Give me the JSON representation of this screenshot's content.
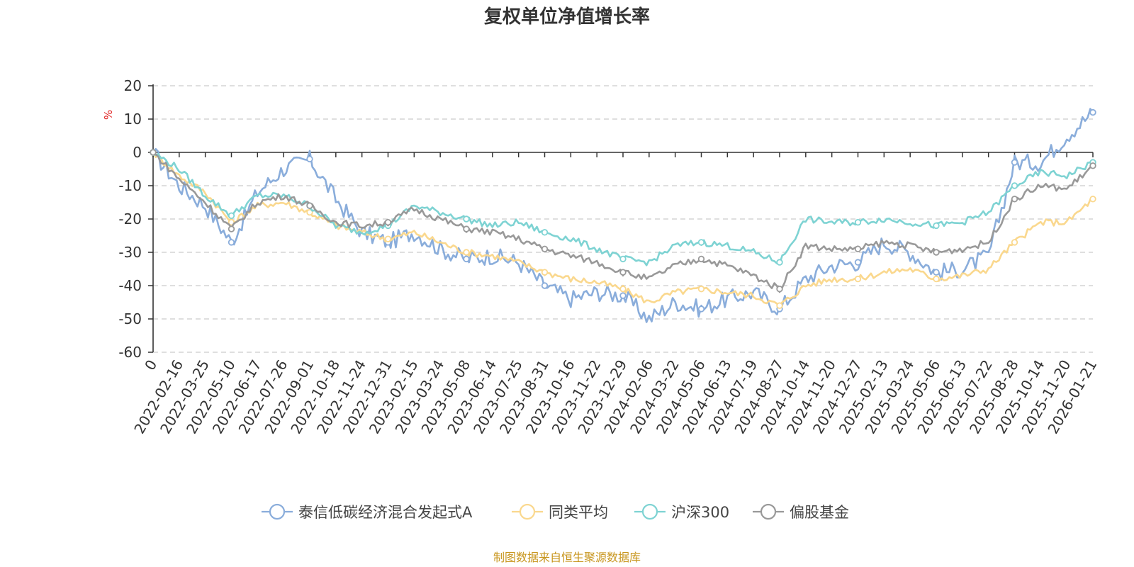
{
  "chart_data": {
    "type": "line",
    "title": "复权单位净值增长率",
    "ylabel": "%",
    "ylim": [
      -60,
      20
    ],
    "yticks": [
      20,
      10,
      0,
      -10,
      -20,
      -30,
      -40,
      -50,
      -60
    ],
    "grid": true,
    "legend_position": "bottom",
    "x_start_label": "0",
    "x": [
      "2022-02-16",
      "2022-03-25",
      "2022-05-10",
      "2022-06-17",
      "2022-07-26",
      "2022-09-01",
      "2022-10-18",
      "2022-11-24",
      "2022-12-31",
      "2023-02-15",
      "2023-03-24",
      "2023-05-08",
      "2023-06-14",
      "2023-07-25",
      "2023-08-31",
      "2023-10-16",
      "2023-11-22",
      "2023-12-29",
      "2024-02-06",
      "2024-03-22",
      "2024-05-06",
      "2024-06-13",
      "2024-07-19",
      "2024-08-27",
      "2024-10-14",
      "2024-11-20",
      "2024-12-27",
      "2025-02-13",
      "2025-03-24",
      "2025-05-06",
      "2025-06-13",
      "2025-07-22",
      "2025-08-28",
      "2025-10-14",
      "2025-11-20",
      "2026-01-21"
    ],
    "series": [
      {
        "name": "泰信低碳经济混合发起式A",
        "color": "#8aaddb",
        "values": [
          -10,
          -16,
          -27,
          -12,
          -5,
          -2,
          -14,
          -24,
          -27,
          -24,
          -29,
          -32,
          -31,
          -33,
          -40,
          -44,
          -42,
          -43,
          -50,
          -45,
          -47,
          -44,
          -42,
          -47,
          -38,
          -34,
          -33,
          -27,
          -30,
          -36,
          -35,
          -31,
          -3,
          -3,
          5,
          12
        ]
      },
      {
        "name": "同类平均",
        "color": "#fad88e",
        "values": [
          -7,
          -12,
          -21,
          -16,
          -15,
          -18,
          -22,
          -24,
          -26,
          -24,
          -27,
          -30,
          -31,
          -33,
          -36,
          -38,
          -39,
          -41,
          -45,
          -42,
          -41,
          -42,
          -43,
          -46,
          -40,
          -38,
          -38,
          -36,
          -35,
          -38,
          -37,
          -35,
          -27,
          -21,
          -21,
          -14
        ]
      },
      {
        "name": "沪深300",
        "color": "#7ed3d3",
        "values": [
          -5,
          -13,
          -19,
          -13,
          -13,
          -16,
          -22,
          -24,
          -22,
          -16,
          -18,
          -20,
          -22,
          -21,
          -24,
          -26,
          -29,
          -32,
          -33,
          -28,
          -27,
          -28,
          -30,
          -33,
          -20,
          -21,
          -21,
          -20,
          -21,
          -22,
          -21,
          -18,
          -10,
          -6,
          -7,
          -3
        ]
      },
      {
        "name": "偏股基金",
        "color": "#999999",
        "values": [
          -8,
          -15,
          -23,
          -15,
          -13,
          -16,
          -21,
          -22,
          -21,
          -17,
          -20,
          -23,
          -24,
          -26,
          -29,
          -31,
          -33,
          -36,
          -38,
          -34,
          -32,
          -34,
          -37,
          -41,
          -28,
          -29,
          -29,
          -27,
          -28,
          -30,
          -29,
          -27,
          -14,
          -10,
          -11,
          -4
        ]
      }
    ]
  },
  "source_note": "制图数据来自恒生聚源数据库"
}
